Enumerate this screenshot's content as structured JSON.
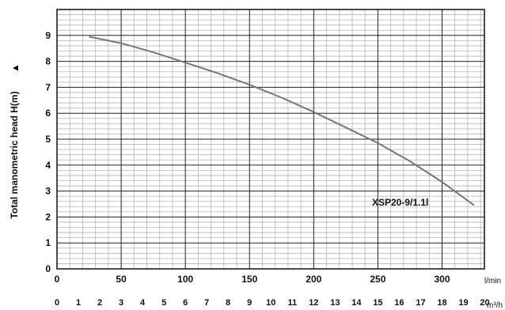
{
  "chart_data": {
    "type": "line",
    "ylabel": "Total manometric head H(m)",
    "ylabel_arrow": "▲",
    "x_unit_primary": "l/min",
    "x_unit_secondary": "m³/h",
    "x_primary_ticks": [
      "0",
      "50",
      "100",
      "150",
      "200",
      "250",
      "300"
    ],
    "x_secondary_ticks": [
      "0",
      "1",
      "2",
      "3",
      "4",
      "5",
      "6",
      "7",
      "8",
      "9",
      "10",
      "11",
      "12",
      "13",
      "14",
      "15",
      "16",
      "17",
      "18",
      "19",
      "20"
    ],
    "y_ticks": [
      "0",
      "1",
      "2",
      "3",
      "4",
      "5",
      "6",
      "7",
      "8",
      "9"
    ],
    "xlim": [
      0,
      333
    ],
    "ylim": [
      0,
      10
    ],
    "grid": true,
    "series": [
      {
        "name": "XSP20-9/1.1l",
        "x": [
          25,
          50,
          75,
          100,
          125,
          150,
          175,
          200,
          225,
          250,
          275,
          300,
          325
        ],
        "y": [
          8.95,
          8.7,
          8.35,
          7.95,
          7.55,
          7.1,
          6.6,
          6.05,
          5.45,
          4.85,
          4.15,
          3.35,
          2.45
        ]
      }
    ],
    "colors": {
      "curve": "#777777",
      "grid_minor": "#b5b5b5",
      "grid_major": "#222222"
    }
  }
}
